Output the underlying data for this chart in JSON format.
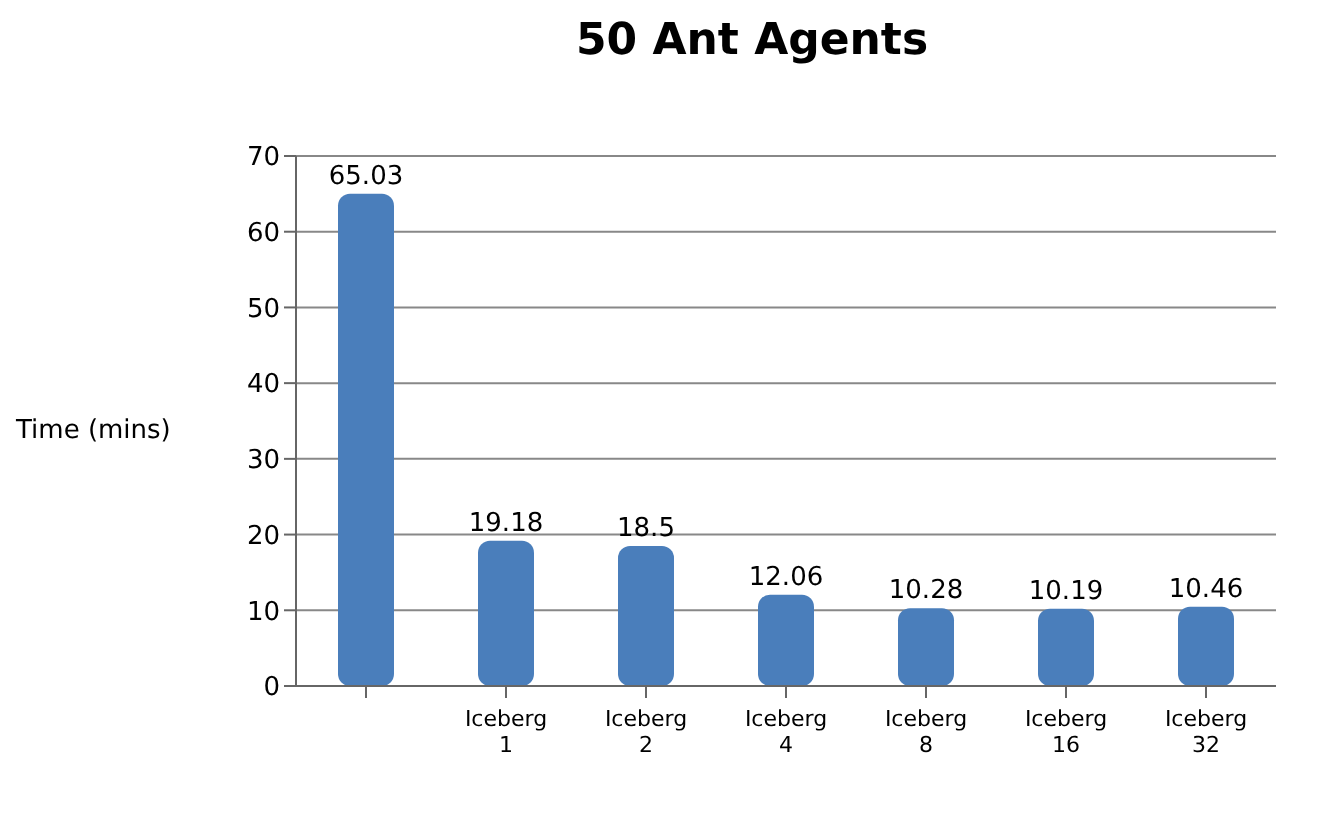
{
  "chart_data": {
    "type": "bar",
    "title": "50 Ant Agents",
    "ylabel": "Time (mins)",
    "categories": [
      null,
      "Iceberg 1",
      "Iceberg 2",
      "Iceberg 4",
      "Iceberg 8",
      "Iceberg 16",
      "Iceberg 32"
    ],
    "values": [
      65.03,
      19.18,
      18.5,
      12.06,
      10.28,
      10.19,
      10.46
    ],
    "color": "#4a7ebb",
    "ylim": [
      0,
      70
    ],
    "yticks": [
      0,
      10,
      20,
      30,
      40,
      50,
      60,
      70
    ],
    "grid": "y",
    "data_labels": true
  }
}
